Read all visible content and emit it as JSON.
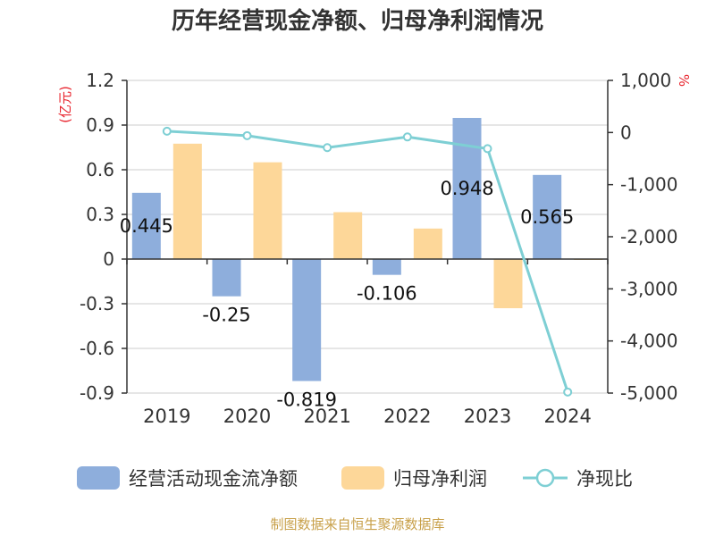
{
  "chart_data": {
    "type": "bar+line",
    "title": "历年经营现金净额、归母净利润情况",
    "categories": [
      "2019",
      "2020",
      "2021",
      "2022",
      "2023",
      "2024"
    ],
    "left_axis": {
      "unit": "(亿元)",
      "ylim": [
        -0.9,
        1.2
      ],
      "ticks": [
        1.2,
        0.9,
        0.6,
        0.3,
        0,
        -0.3,
        -0.6,
        -0.9
      ],
      "tick_labels": [
        "1.2",
        "0.9",
        "0.6",
        "0.3",
        "0",
        "-0.3",
        "-0.6",
        "-0.9"
      ]
    },
    "right_axis": {
      "unit": "%",
      "ylim": [
        -5000,
        1000
      ],
      "ticks": [
        1000,
        0,
        -1000,
        -2000,
        -3000,
        -4000,
        -5000
      ],
      "tick_labels": [
        "1,000",
        "0",
        "-1,000",
        "-2,000",
        "-3,000",
        "-4,000",
        "-5,000"
      ]
    },
    "series": [
      {
        "name": "经营活动现金流净额",
        "type": "bar",
        "axis": "left",
        "color": "#8eaedc",
        "values": [
          0.445,
          -0.25,
          -0.819,
          -0.106,
          0.948,
          0.565
        ],
        "labels": [
          "0.445",
          "-0.25",
          "-0.819",
          "-0.106",
          "0.948",
          "0.565"
        ]
      },
      {
        "name": "归母净利润",
        "type": "bar",
        "axis": "left",
        "color": "#fdd799",
        "values": [
          0.775,
          0.65,
          0.315,
          0.205,
          -0.33,
          -0.005
        ]
      },
      {
        "name": "净现比",
        "type": "line",
        "axis": "right",
        "color": "#7ecfd4",
        "values": [
          25,
          -60,
          -290,
          -85,
          -310,
          -4980
        ]
      }
    ]
  },
  "footer": {
    "source": "制图数据来自恒生聚源数据库"
  }
}
